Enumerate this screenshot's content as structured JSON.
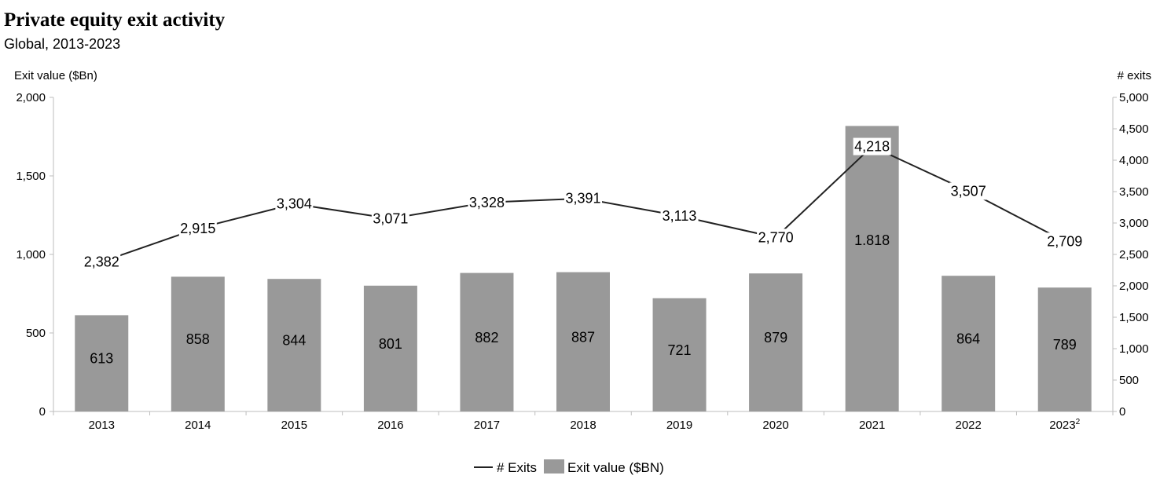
{
  "header": {
    "title": "Private equity exit activity",
    "subtitle": "Global, 2013-2023"
  },
  "chart_data": {
    "type": "bar",
    "title": "Private equity exit activity",
    "subtitle": "Global, 2013-2023",
    "categories": [
      "2013",
      "2014",
      "2015",
      "2016",
      "2017",
      "2018",
      "2019",
      "2020",
      "2021",
      "2022",
      "2023"
    ],
    "category_footnotes": {
      "2023": "2"
    },
    "ylabel": "Exit value ($Bn)",
    "y2label": "# exits",
    "ylim": [
      0,
      2000
    ],
    "y2lim": [
      0,
      5000
    ],
    "yticks": [
      "0",
      "500",
      "1,000",
      "1,500",
      "2,000"
    ],
    "y2ticks": [
      "0",
      "500",
      "1,000",
      "1,500",
      "2,000",
      "2,500",
      "3,000",
      "3,500",
      "4,000",
      "4,500",
      "5,000"
    ],
    "grid": false,
    "legend_position": "bottom-center",
    "series": [
      {
        "name": "Exit value ($BN)",
        "type": "bar",
        "axis": "left",
        "color": "#999999",
        "values": [
          613,
          858,
          844,
          801,
          882,
          887,
          721,
          879,
          1818,
          864,
          789
        ],
        "labels": [
          "613",
          "858",
          "844",
          "801",
          "882",
          "887",
          "721",
          "879",
          "1.818",
          "864",
          "789"
        ]
      },
      {
        "name": "# Exits",
        "type": "line",
        "axis": "right",
        "color": "#222222",
        "values": [
          2382,
          2915,
          3304,
          3071,
          3328,
          3391,
          3113,
          2770,
          4218,
          3507,
          2709
        ],
        "labels": [
          "2,382",
          "2,915",
          "3,304",
          "3,071",
          "3,328",
          "3,391",
          "3,113",
          "2,770",
          "4,218",
          "3,507",
          "2,709"
        ]
      }
    ]
  }
}
